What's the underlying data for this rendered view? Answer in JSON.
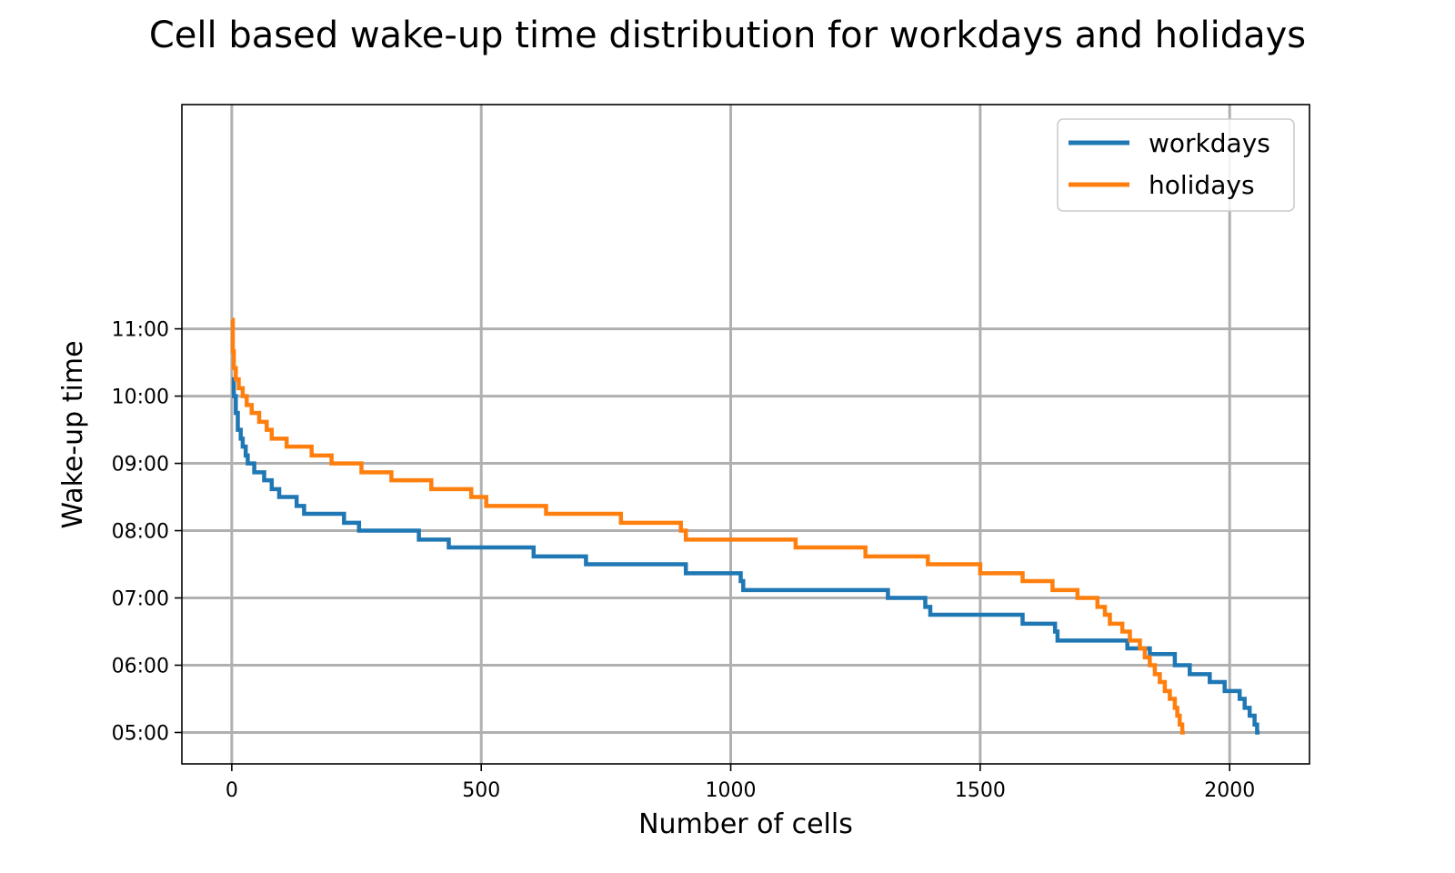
{
  "chart_data": {
    "type": "line",
    "title": "Cell based wake-up time distribution for workdays and holidays",
    "xlabel": "Number of cells",
    "ylabel": "Wake-up time",
    "xlim": [
      -100,
      2160
    ],
    "ylim_minutes": [
      272,
      860
    ],
    "x_ticks": [
      0,
      500,
      1000,
      1500,
      2000
    ],
    "x_tick_labels": [
      "0",
      "500",
      "1000",
      "1500",
      "2000"
    ],
    "y_ticks_minutes": [
      300,
      360,
      420,
      480,
      540,
      600,
      660
    ],
    "y_tick_labels": [
      "05:00",
      "06:00",
      "07:00",
      "08:00",
      "09:00",
      "10:00",
      "11:00"
    ],
    "grid": true,
    "legend_position": "top-right",
    "legend": [
      "workdays",
      "holidays"
    ],
    "series": [
      {
        "name": "workdays",
        "color": "#1f77b4",
        "points": [
          [
            0,
            615
          ],
          [
            4,
            600
          ],
          [
            8,
            585
          ],
          [
            12,
            570
          ],
          [
            18,
            562
          ],
          [
            22,
            555
          ],
          [
            28,
            547
          ],
          [
            32,
            540
          ],
          [
            45,
            532
          ],
          [
            65,
            525
          ],
          [
            80,
            517
          ],
          [
            95,
            510
          ],
          [
            130,
            502
          ],
          [
            145,
            495
          ],
          [
            225,
            487
          ],
          [
            255,
            480
          ],
          [
            265,
            480
          ],
          [
            365,
            480
          ],
          [
            375,
            472
          ],
          [
            435,
            465
          ],
          [
            600,
            465
          ],
          [
            605,
            457
          ],
          [
            710,
            450
          ],
          [
            905,
            450
          ],
          [
            910,
            442
          ],
          [
            1020,
            435
          ],
          [
            1025,
            427
          ],
          [
            1310,
            427
          ],
          [
            1315,
            420
          ],
          [
            1390,
            412
          ],
          [
            1400,
            405
          ],
          [
            1580,
            405
          ],
          [
            1585,
            397
          ],
          [
            1650,
            390
          ],
          [
            1655,
            382
          ],
          [
            1790,
            382
          ],
          [
            1795,
            375
          ],
          [
            1840,
            370
          ],
          [
            1890,
            360
          ],
          [
            1920,
            352
          ],
          [
            1960,
            345
          ],
          [
            1990,
            337
          ],
          [
            2020,
            330
          ],
          [
            2030,
            322
          ],
          [
            2040,
            315
          ],
          [
            2050,
            307
          ],
          [
            2055,
            300
          ],
          [
            2060,
            300
          ]
        ]
      },
      {
        "name": "holidays",
        "color": "#ff7f0e",
        "points": [
          [
            0,
            668
          ],
          [
            2,
            640
          ],
          [
            4,
            625
          ],
          [
            8,
            615
          ],
          [
            14,
            607
          ],
          [
            22,
            600
          ],
          [
            30,
            592
          ],
          [
            40,
            585
          ],
          [
            55,
            577
          ],
          [
            70,
            570
          ],
          [
            80,
            562
          ],
          [
            110,
            555
          ],
          [
            160,
            547
          ],
          [
            200,
            540
          ],
          [
            260,
            532
          ],
          [
            320,
            525
          ],
          [
            400,
            517
          ],
          [
            480,
            510
          ],
          [
            510,
            502
          ],
          [
            630,
            495
          ],
          [
            780,
            487
          ],
          [
            900,
            480
          ],
          [
            910,
            472
          ],
          [
            1125,
            472
          ],
          [
            1130,
            465
          ],
          [
            1265,
            465
          ],
          [
            1270,
            457
          ],
          [
            1390,
            457
          ],
          [
            1395,
            450
          ],
          [
            1495,
            450
          ],
          [
            1500,
            442
          ],
          [
            1580,
            442
          ],
          [
            1585,
            435
          ],
          [
            1640,
            435
          ],
          [
            1645,
            427
          ],
          [
            1690,
            427
          ],
          [
            1695,
            420
          ],
          [
            1730,
            420
          ],
          [
            1735,
            412
          ],
          [
            1750,
            405
          ],
          [
            1760,
            397
          ],
          [
            1785,
            390
          ],
          [
            1800,
            382
          ],
          [
            1820,
            375
          ],
          [
            1830,
            367
          ],
          [
            1840,
            360
          ],
          [
            1850,
            352
          ],
          [
            1860,
            345
          ],
          [
            1870,
            337
          ],
          [
            1880,
            330
          ],
          [
            1890,
            322
          ],
          [
            1895,
            315
          ],
          [
            1900,
            307
          ],
          [
            1905,
            300
          ],
          [
            1910,
            300
          ]
        ]
      }
    ]
  }
}
